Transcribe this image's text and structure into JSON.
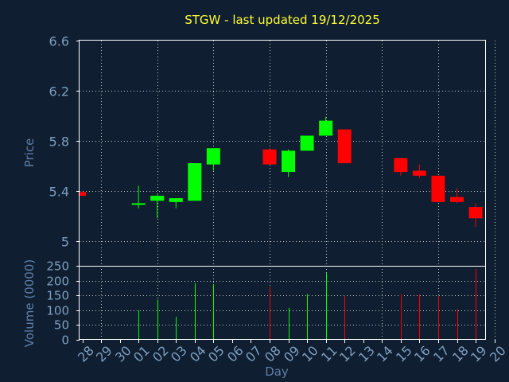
{
  "chart_data": [
    {
      "type": "candlestick",
      "title": "STGW - last updated 19/12/2025",
      "ylabel": "Price",
      "ylim": [
        4.8,
        6.6
      ],
      "yticks": [
        "6.6",
        "6.2",
        "5.8",
        "5.4",
        "5"
      ],
      "up_color": "#00ff00",
      "down_color": "#ff0000",
      "grid": true,
      "candles": [
        {
          "day": "28",
          "open": 5.39,
          "close": 5.36,
          "high": 5.39,
          "low": 5.36
        },
        {
          "day": "01",
          "open": 5.29,
          "close": 5.3,
          "high": 5.44,
          "low": 5.26
        },
        {
          "day": "02",
          "open": 5.32,
          "close": 5.36,
          "high": 5.37,
          "low": 5.18
        },
        {
          "day": "03",
          "open": 5.31,
          "close": 5.34,
          "high": 5.34,
          "low": 5.26
        },
        {
          "day": "04",
          "open": 5.32,
          "close": 5.62,
          "high": 5.62,
          "low": 5.32
        },
        {
          "day": "05",
          "open": 5.61,
          "close": 5.74,
          "high": 5.74,
          "low": 5.56
        },
        {
          "day": "08",
          "open": 5.73,
          "close": 5.61,
          "high": 5.74,
          "low": 5.61
        },
        {
          "day": "09",
          "open": 5.55,
          "close": 5.72,
          "high": 5.73,
          "low": 5.51
        },
        {
          "day": "10",
          "open": 5.72,
          "close": 5.84,
          "high": 5.84,
          "low": 5.72
        },
        {
          "day": "11",
          "open": 5.84,
          "close": 5.96,
          "high": 5.99,
          "low": 5.84
        },
        {
          "day": "12",
          "open": 5.89,
          "close": 5.62,
          "high": 5.89,
          "low": 5.62
        },
        {
          "day": "15",
          "open": 5.66,
          "close": 5.55,
          "high": 5.66,
          "low": 5.52
        },
        {
          "day": "16",
          "open": 5.56,
          "close": 5.52,
          "high": 5.61,
          "low": 5.5
        },
        {
          "day": "17",
          "open": 5.52,
          "close": 5.31,
          "high": 5.52,
          "low": 5.31
        },
        {
          "day": "18",
          "open": 5.35,
          "close": 5.31,
          "high": 5.42,
          "low": 5.3
        },
        {
          "day": "19",
          "open": 5.27,
          "close": 5.18,
          "high": 5.3,
          "low": 5.11
        }
      ]
    },
    {
      "type": "bar",
      "ylabel": "Volume (0000)",
      "xlabel": "Day",
      "ylim": [
        0,
        250
      ],
      "yticks": [
        "250",
        "200",
        "150",
        "100",
        "50",
        "0"
      ],
      "categories": [
        "28",
        "29",
        "30",
        "01",
        "02",
        "03",
        "04",
        "05",
        "06",
        "07",
        "08",
        "09",
        "10",
        "11",
        "12",
        "13",
        "14",
        "15",
        "16",
        "17",
        "18",
        "19",
        "20"
      ],
      "bars": [
        {
          "day": "01",
          "value": 100,
          "dir": "up"
        },
        {
          "day": "02",
          "value": 135,
          "dir": "up"
        },
        {
          "day": "03",
          "value": 78,
          "dir": "up"
        },
        {
          "day": "04",
          "value": 192,
          "dir": "up"
        },
        {
          "day": "05",
          "value": 188,
          "dir": "up"
        },
        {
          "day": "08",
          "value": 178,
          "dir": "down"
        },
        {
          "day": "09",
          "value": 108,
          "dir": "up"
        },
        {
          "day": "10",
          "value": 155,
          "dir": "up"
        },
        {
          "day": "11",
          "value": 225,
          "dir": "up"
        },
        {
          "day": "12",
          "value": 148,
          "dir": "down"
        },
        {
          "day": "15",
          "value": 155,
          "dir": "down"
        },
        {
          "day": "16",
          "value": 153,
          "dir": "down"
        },
        {
          "day": "17",
          "value": 148,
          "dir": "down"
        },
        {
          "day": "18",
          "value": 103,
          "dir": "down"
        },
        {
          "day": "19",
          "value": 240,
          "dir": "down"
        }
      ]
    }
  ]
}
